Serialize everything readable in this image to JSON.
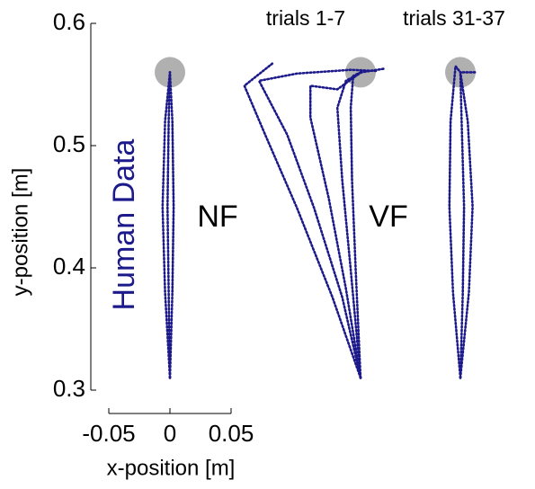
{
  "chart_data": {
    "type": "line",
    "xlabel": "x-position [m]",
    "ylabel": "y-position [m]",
    "annotation": "Human Data",
    "xlim": [
      -0.05,
      0.05
    ],
    "xticks": [
      -0.05,
      0,
      0.05
    ],
    "ylim": [
      0.3,
      0.6
    ],
    "yticks": [
      0.3,
      0.4,
      0.5,
      0.6
    ],
    "color": "#1c1a8a",
    "target": {
      "x": 0,
      "y": 0.56,
      "radius": 0.0125,
      "color": "#b0b0b0"
    },
    "panels": [
      {
        "series": [
          {
            "x": [
              0,
              -0.004,
              -0.006,
              -0.004,
              0
            ],
            "y": [
              0.31,
              0.38,
              0.45,
              0.52,
              0.56
            ]
          },
          {
            "x": [
              0,
              0.002,
              0.003,
              0.002,
              0
            ],
            "y": [
              0.31,
              0.38,
              0.45,
              0.52,
              0.56
            ]
          },
          {
            "x": [
              0,
              -0.001,
              -0.002,
              -0.001,
              0
            ],
            "y": [
              0.31,
              0.38,
              0.45,
              0.52,
              0.56
            ]
          }
        ]
      },
      {
        "title": "trials 1-7",
        "label": "NF",
        "series": [
          {
            "x": [
              0,
              -0.023,
              -0.052,
              -0.078,
              -0.095,
              -0.071
            ],
            "y": [
              0.31,
              0.376,
              0.449,
              0.509,
              0.549,
              0.568
            ]
          },
          {
            "x": [
              0,
              -0.015,
              -0.038,
              -0.06,
              -0.083,
              -0.052,
              -0.008,
              0.014
            ],
            "y": [
              0.31,
              0.376,
              0.449,
              0.509,
              0.553,
              0.559,
              0.562,
              0.561
            ]
          },
          {
            "x": [
              0,
              -0.012,
              -0.026,
              -0.041,
              -0.041,
              -0.019,
              -0.001
            ],
            "y": [
              0.31,
              0.383,
              0.457,
              0.523,
              0.549,
              0.546,
              0.559
            ]
          },
          {
            "x": [
              0,
              -0.008,
              -0.015,
              -0.019,
              -0.012,
              0.001,
              0.02
            ],
            "y": [
              0.31,
              0.398,
              0.472,
              0.531,
              0.553,
              0.56,
              0.563
            ]
          },
          {
            "x": [
              0,
              -0.004,
              -0.007,
              -0.008,
              -0.006,
              0
            ],
            "y": [
              0.31,
              0.398,
              0.472,
              0.531,
              0.557,
              0.56
            ]
          }
        ]
      },
      {
        "title": "trials 31-37",
        "label": "VF",
        "series": [
          {
            "x": [
              0,
              0.007,
              0.01,
              0.006,
              0,
              0.012
            ],
            "y": [
              0.31,
              0.38,
              0.45,
              0.52,
              0.56,
              0.56
            ]
          },
          {
            "x": [
              0,
              -0.006,
              -0.009,
              -0.008,
              -0.004,
              0
            ],
            "y": [
              0.31,
              0.38,
              0.45,
              0.52,
              0.565,
              0.56
            ]
          },
          {
            "x": [
              0,
              0.002,
              0.003,
              0.001,
              0
            ],
            "y": [
              0.31,
              0.38,
              0.45,
              0.52,
              0.56
            ]
          }
        ]
      }
    ]
  }
}
